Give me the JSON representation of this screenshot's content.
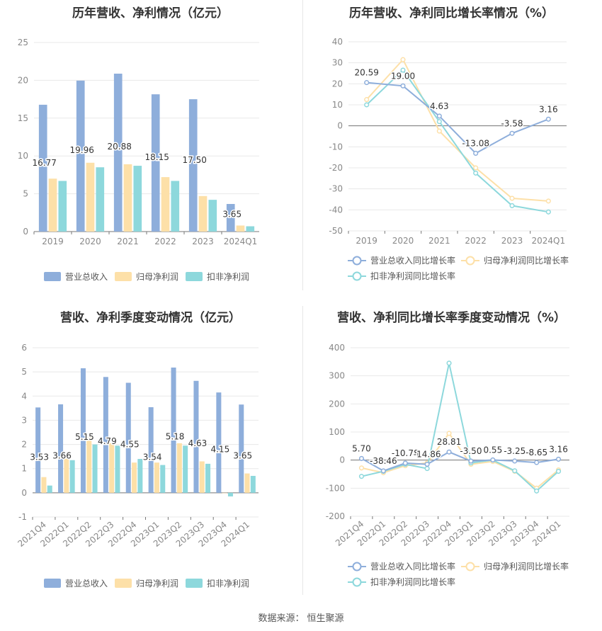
{
  "source_label": "数据来源：",
  "source_name": "恒生聚源",
  "colors": {
    "revenue": "#8eaedb",
    "net_profit": "#fde0a8",
    "deducted_net_profit": "#8dd8dc",
    "axis": "#999999",
    "grid": "#e8e8e8"
  },
  "chart_data": [
    {
      "id": "annual-bar",
      "type": "bar",
      "title": "历年营收、净利情况（亿元）",
      "categories": [
        "2019",
        "2020",
        "2021",
        "2022",
        "2023",
        "2024Q1"
      ],
      "series": [
        {
          "name": "营业总收入",
          "values": [
            16.77,
            19.96,
            20.88,
            18.15,
            17.5,
            3.65
          ],
          "labels": [
            "16.77",
            "19.96",
            "20.88",
            "18.15",
            "17.50",
            "3.65"
          ]
        },
        {
          "name": "归母净利润",
          "values": [
            7.0,
            9.1,
            8.9,
            7.2,
            4.7,
            0.8
          ]
        },
        {
          "name": "扣非净利润",
          "values": [
            6.7,
            8.5,
            8.7,
            6.7,
            4.2,
            0.7
          ]
        }
      ],
      "ylim": [
        0,
        25
      ],
      "yticks": [
        0,
        5,
        10,
        15,
        20,
        25
      ],
      "grid": true,
      "legend": "bottom"
    },
    {
      "id": "annual-line",
      "type": "line",
      "title": "历年营收、净利同比增长率情况（%）",
      "categories": [
        "2019",
        "2020",
        "2021",
        "2022",
        "2023",
        "2024Q1"
      ],
      "series": [
        {
          "name": "营业总收入同比增长率",
          "values": [
            20.59,
            19.0,
            4.63,
            -13.08,
            -3.58,
            3.16
          ],
          "labels": [
            "20.59",
            "19.00",
            "4.63",
            "-13.08",
            "-3.58",
            "3.16"
          ]
        },
        {
          "name": "归母净利润同比增长率",
          "values": [
            12.5,
            31.5,
            -2.5,
            -20.0,
            -34.5,
            -35.8
          ]
        },
        {
          "name": "扣非净利润同比增长率",
          "values": [
            10.0,
            26.5,
            2.0,
            -22.5,
            -38.0,
            -41.0
          ]
        }
      ],
      "ylim": [
        -50,
        40
      ],
      "yticks": [
        -50,
        -40,
        -30,
        -20,
        -10,
        0,
        10,
        20,
        30,
        40
      ],
      "grid": true,
      "legend": "bottom"
    },
    {
      "id": "quarter-bar",
      "type": "bar",
      "title": "营收、净利季度变动情况（亿元）",
      "categories": [
        "2021Q4",
        "2022Q1",
        "2022Q2",
        "2022Q3",
        "2022Q4",
        "2023Q1",
        "2023Q2",
        "2023Q3",
        "2023Q4",
        "2024Q1"
      ],
      "series": [
        {
          "name": "营业总收入",
          "values": [
            3.53,
            3.66,
            5.15,
            4.79,
            4.55,
            3.54,
            5.18,
            4.63,
            4.15,
            3.65
          ],
          "labels": [
            "3.53",
            "3.66",
            "5.15",
            "4.79",
            "4.55",
            "3.54",
            "5.18",
            "4.63",
            "4.15",
            "3.65"
          ]
        },
        {
          "name": "归母净利润",
          "values": [
            0.65,
            1.5,
            2.3,
            2.05,
            1.25,
            1.25,
            2.05,
            1.3,
            0.0,
            0.8
          ]
        },
        {
          "name": "扣非净利润",
          "values": [
            0.3,
            1.35,
            2.0,
            1.95,
            1.4,
            1.15,
            1.95,
            1.2,
            -0.15,
            0.7
          ]
        }
      ],
      "ylim": [
        -1,
        6
      ],
      "yticks": [
        -1,
        0,
        1,
        2,
        3,
        4,
        5,
        6
      ],
      "grid": true,
      "legend": "bottom"
    },
    {
      "id": "quarter-line",
      "type": "line",
      "title": "营收、净利同比增长率季度变动情况（%）",
      "categories": [
        "2021Q4",
        "2022Q1",
        "2022Q2",
        "2022Q3",
        "2022Q4",
        "2023Q1",
        "2023Q2",
        "2023Q3",
        "2023Q4",
        "2024Q1"
      ],
      "series": [
        {
          "name": "营业总收入同比增长率",
          "values": [
            5.7,
            -38.46,
            -10.78,
            -14.86,
            28.81,
            -3.5,
            0.55,
            -3.25,
            -8.65,
            3.16
          ],
          "labels": [
            "5.70",
            "-38.46",
            "-10.78",
            "-14.86",
            "28.81",
            "-3.50",
            "0.55",
            "-3.25",
            "-8.65",
            "3.16"
          ]
        },
        {
          "name": "归母净利润同比增长率",
          "values": [
            -28,
            -45,
            -20,
            -10,
            95,
            -15,
            -5,
            -40,
            -100,
            -35
          ]
        },
        {
          "name": "扣非净利润同比增长率",
          "values": [
            -58,
            -40,
            -15,
            -30,
            345,
            -10,
            0,
            -38,
            -110,
            -40
          ]
        }
      ],
      "ylim": [
        -200,
        400
      ],
      "yticks": [
        -200,
        -100,
        0,
        100,
        200,
        300,
        400
      ],
      "grid": true,
      "legend": "bottom"
    }
  ]
}
